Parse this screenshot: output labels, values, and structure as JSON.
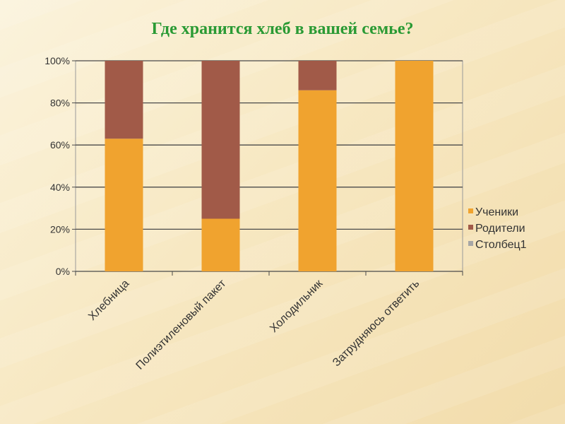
{
  "chart_data": {
    "type": "bar",
    "stacked": true,
    "title": "Где хранится хлеб в вашей семье?",
    "categories": [
      "Хлебница",
      "Полиэтиленовый пакет",
      "Холодильник",
      "Затрудняюсь ответить"
    ],
    "series": [
      {
        "name": "Ученики",
        "color": "#f0a32f",
        "values": [
          63,
          25,
          86,
          100
        ]
      },
      {
        "name": "Родители",
        "color": "#a15a48",
        "values": [
          37,
          75,
          14,
          0
        ]
      },
      {
        "name": "Столбец1",
        "color": "#a6a6a6",
        "values": [
          0,
          0,
          0,
          0
        ]
      }
    ],
    "ylim": [
      0,
      100
    ],
    "yticks": [
      "0%",
      "20%",
      "40%",
      "60%",
      "80%",
      "100%"
    ],
    "grid": true,
    "legend": "right"
  }
}
